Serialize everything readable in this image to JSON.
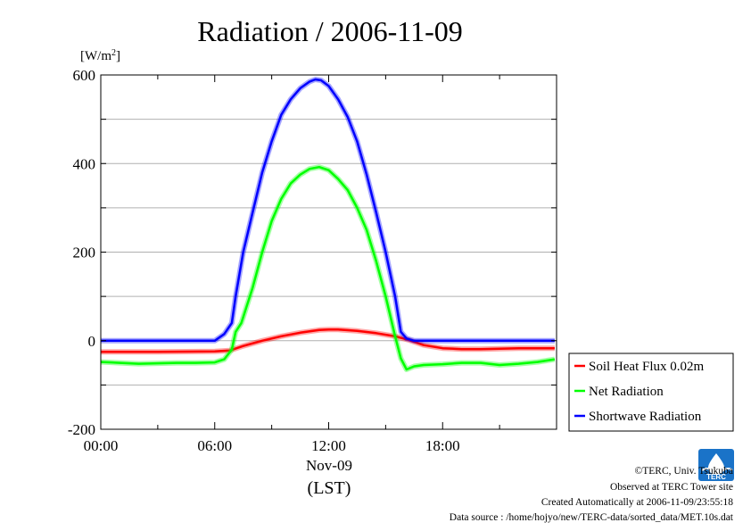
{
  "chart_data": {
    "type": "line",
    "title": "Radiation / 2006-11-09",
    "ylabel_unit": "[W/m",
    "ylabel_unit_sup": "2",
    "ylabel_unit_close": "]",
    "xlabel": "(LST)",
    "x_date_label": "Nov-09",
    "x_unit": "hour",
    "xlim": [
      0,
      24
    ],
    "ylim": [
      -200,
      600
    ],
    "y_ticks": [
      -200,
      0,
      200,
      400,
      600
    ],
    "y_tick_labels": [
      "-200",
      "0",
      "200",
      "400",
      "600"
    ],
    "x_ticks": [
      0,
      6,
      12,
      18
    ],
    "x_tick_labels": [
      "00:00",
      "06:00",
      "12:00",
      "18:00"
    ],
    "grid": true,
    "legend_position": "right-bottom, outside plot",
    "series": [
      {
        "name": "Soil Heat Flux 0.02m",
        "color": "#ff0000",
        "x": [
          0,
          3,
          6,
          6.8,
          7.5,
          8.5,
          9.5,
          10.5,
          11.5,
          12,
          12.5,
          13.5,
          14.5,
          15.5,
          16.2,
          17,
          18,
          19,
          20,
          21,
          22,
          23,
          23.9
        ],
        "y": [
          -25,
          -25,
          -24,
          -22,
          -12,
          0,
          10,
          18,
          24,
          25,
          25,
          22,
          17,
          10,
          2,
          -10,
          -17,
          -19,
          -19,
          -18,
          -17,
          -17,
          -17
        ]
      },
      {
        "name": "Net Radiation",
        "color": "#00ff00",
        "x": [
          0,
          1,
          2,
          3,
          4,
          5,
          6,
          6.5,
          6.9,
          7.1,
          7.4,
          8,
          8.5,
          9,
          9.5,
          10,
          10.5,
          11,
          11.5,
          12,
          12.5,
          13,
          13.5,
          14,
          14.5,
          15,
          15.5,
          15.8,
          16.1,
          16.5,
          17,
          18,
          19,
          20,
          21,
          22,
          23,
          23.9
        ],
        "y": [
          -48,
          -50,
          -52,
          -51,
          -50,
          -50,
          -49,
          -42,
          -20,
          20,
          40,
          120,
          200,
          270,
          320,
          355,
          375,
          388,
          392,
          385,
          365,
          340,
          300,
          250,
          180,
          100,
          10,
          -40,
          -65,
          -58,
          -55,
          -53,
          -50,
          -50,
          -55,
          -52,
          -48,
          -42
        ]
      },
      {
        "name": "Shortwave Radiation",
        "color": "#0000ff",
        "x": [
          0,
          2,
          4,
          5.5,
          6,
          6.5,
          6.9,
          7.1,
          7.5,
          8,
          8.5,
          9,
          9.5,
          10,
          10.5,
          11,
          11.3,
          11.6,
          12,
          12.5,
          13,
          13.5,
          14,
          14.5,
          15,
          15.5,
          15.8,
          16.1,
          16.5,
          17,
          18,
          20,
          22,
          23.9
        ],
        "y": [
          0,
          0,
          0,
          0,
          0,
          15,
          40,
          100,
          200,
          290,
          380,
          450,
          510,
          545,
          570,
          585,
          590,
          588,
          575,
          545,
          505,
          450,
          375,
          290,
          200,
          100,
          20,
          5,
          0,
          0,
          0,
          0,
          0,
          0
        ]
      }
    ]
  },
  "credits": {
    "line1": "©TERC, Univ. Tsukuba",
    "line2": "Observed at TERC Tower site",
    "line3": "Created Automatically at 2006-11-09/23:55:18",
    "line4": "Data source : /home/hojyo/new/TERC-data/sorted_data/MET.10s.dat",
    "logo_text": "TERC",
    "logo_color": "#1a73c8"
  }
}
